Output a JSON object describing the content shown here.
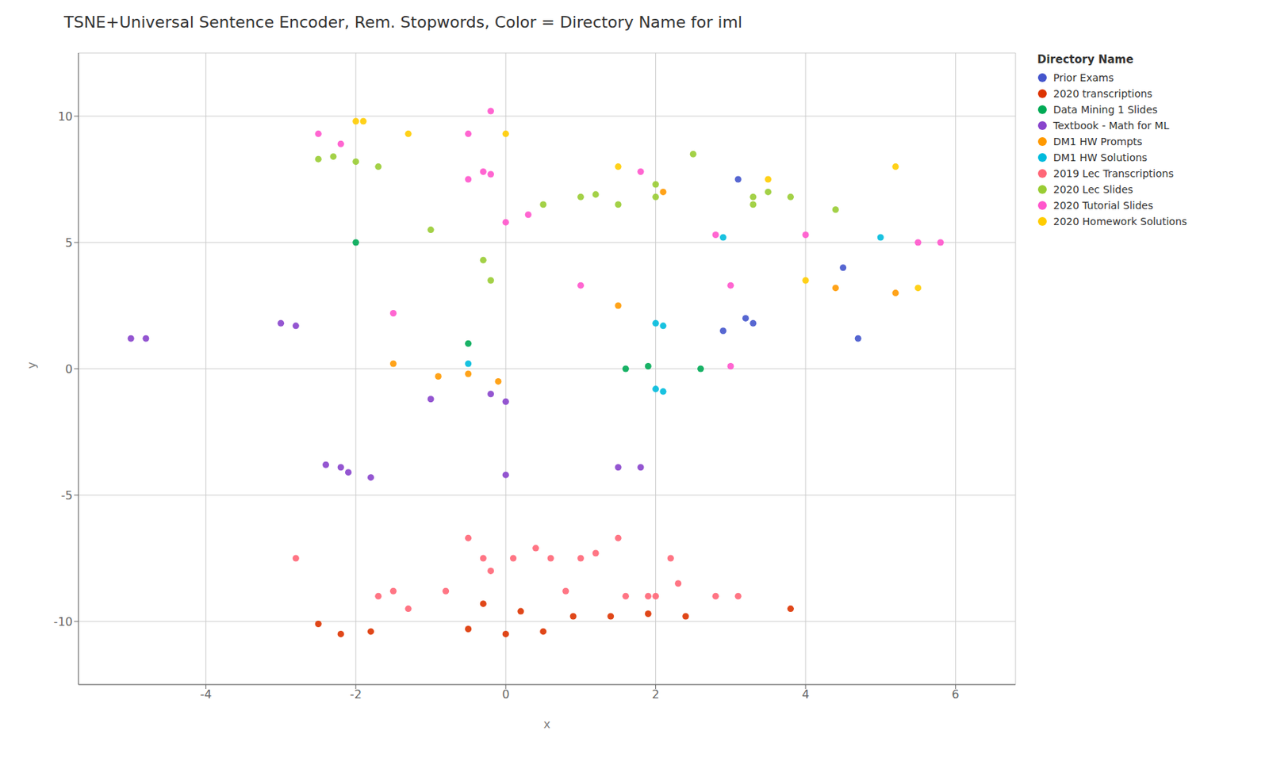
{
  "chart_data": {
    "type": "scatter",
    "title": "TSNE+Universal Sentence Encoder, Rem. Stopwords, Color = Directory Name for iml",
    "xlabel": "x",
    "ylabel": "y",
    "legend_title": "Directory Name",
    "legend": "right",
    "grid": true,
    "xlim": [
      -5.7,
      6.8
    ],
    "ylim": [
      -12.5,
      12.5
    ],
    "xticks": [
      -4,
      -2,
      0,
      2,
      4,
      6
    ],
    "yticks": [
      -10,
      -5,
      0,
      5,
      10
    ],
    "series": [
      {
        "name": "Prior Exams",
        "color": "#4455cc",
        "values": [
          [
            3.1,
            7.5
          ],
          [
            2.9,
            1.5
          ],
          [
            3.2,
            2.0
          ],
          [
            3.3,
            1.8
          ],
          [
            4.5,
            4.0
          ],
          [
            4.7,
            1.2
          ]
        ]
      },
      {
        "name": "2020 transcriptions",
        "color": "#dd3300",
        "values": [
          [
            -2.5,
            -10.1
          ],
          [
            -2.2,
            -10.5
          ],
          [
            -1.8,
            -10.4
          ],
          [
            -0.5,
            -10.3
          ],
          [
            0.0,
            -10.5
          ],
          [
            0.5,
            -10.4
          ],
          [
            0.9,
            -9.8
          ],
          [
            1.4,
            -9.8
          ],
          [
            1.9,
            -9.7
          ],
          [
            2.4,
            -9.8
          ],
          [
            3.8,
            -9.5
          ],
          [
            -0.3,
            -9.3
          ],
          [
            0.2,
            -9.6
          ]
        ]
      },
      {
        "name": "Data Mining 1 Slides",
        "color": "#00aa55",
        "values": [
          [
            -2.0,
            5.0
          ],
          [
            -0.5,
            1.0
          ],
          [
            1.6,
            0.0
          ],
          [
            1.9,
            0.1
          ],
          [
            2.6,
            0.0
          ]
        ]
      },
      {
        "name": "Textbook - Math for ML",
        "color": "#8844cc",
        "values": [
          [
            -5.0,
            1.2
          ],
          [
            -4.8,
            1.2
          ],
          [
            -3.0,
            1.8
          ],
          [
            -2.8,
            1.7
          ],
          [
            -2.4,
            -3.8
          ],
          [
            -2.2,
            -3.9
          ],
          [
            -2.1,
            -4.1
          ],
          [
            -1.8,
            -4.3
          ],
          [
            0.0,
            -4.2
          ],
          [
            -0.2,
            -1.0
          ],
          [
            -1.0,
            -1.2
          ],
          [
            0.0,
            -1.3
          ],
          [
            1.5,
            -3.9
          ],
          [
            1.8,
            -3.9
          ]
        ]
      },
      {
        "name": "DM1 HW Prompts",
        "color": "#ff9900",
        "values": [
          [
            -0.9,
            -0.3
          ],
          [
            -0.5,
            -0.2
          ],
          [
            1.5,
            2.5
          ],
          [
            4.4,
            3.2
          ],
          [
            2.1,
            7.0
          ],
          [
            -1.5,
            0.2
          ],
          [
            -0.1,
            -0.5
          ],
          [
            5.2,
            3.0
          ]
        ]
      },
      {
        "name": "DM1 HW Solutions",
        "color": "#00bbdd",
        "values": [
          [
            -0.5,
            0.2
          ],
          [
            2.0,
            1.8
          ],
          [
            2.1,
            1.7
          ],
          [
            2.0,
            -0.8
          ],
          [
            2.1,
            -0.9
          ],
          [
            2.9,
            5.2
          ],
          [
            5.0,
            5.2
          ]
        ]
      },
      {
        "name": "2019 Lec Transcriptions",
        "color": "#ff6677",
        "values": [
          [
            -2.8,
            -7.5
          ],
          [
            -1.7,
            -9.0
          ],
          [
            -1.5,
            -8.8
          ],
          [
            -1.3,
            -9.5
          ],
          [
            -0.8,
            -8.8
          ],
          [
            -0.5,
            -6.7
          ],
          [
            -0.3,
            -7.5
          ],
          [
            -0.2,
            -8.0
          ],
          [
            0.1,
            -7.5
          ],
          [
            0.4,
            -7.1
          ],
          [
            0.6,
            -7.5
          ],
          [
            0.8,
            -8.8
          ],
          [
            1.0,
            -7.5
          ],
          [
            1.2,
            -7.3
          ],
          [
            1.5,
            -6.7
          ],
          [
            1.6,
            -9.0
          ],
          [
            1.9,
            -9.0
          ],
          [
            2.0,
            -9.0
          ],
          [
            2.2,
            -7.5
          ],
          [
            2.8,
            -9.0
          ],
          [
            3.1,
            -9.0
          ],
          [
            2.3,
            -8.5
          ]
        ]
      },
      {
        "name": "2020 Lec Slides",
        "color": "#99cc33",
        "values": [
          [
            -2.5,
            8.3
          ],
          [
            -2.3,
            8.4
          ],
          [
            -2.0,
            8.2
          ],
          [
            -1.7,
            8.0
          ],
          [
            -1.0,
            5.5
          ],
          [
            -0.3,
            4.3
          ],
          [
            -0.2,
            3.5
          ],
          [
            0.5,
            6.5
          ],
          [
            1.0,
            6.8
          ],
          [
            1.2,
            6.9
          ],
          [
            1.5,
            6.5
          ],
          [
            2.0,
            6.8
          ],
          [
            2.0,
            7.3
          ],
          [
            2.5,
            8.5
          ],
          [
            3.3,
            6.8
          ],
          [
            3.5,
            7.0
          ],
          [
            3.8,
            6.8
          ],
          [
            3.3,
            6.5
          ],
          [
            4.4,
            6.3
          ]
        ]
      },
      {
        "name": "2020 Tutorial Slides",
        "color": "#ff55cc",
        "values": [
          [
            -2.5,
            9.3
          ],
          [
            -2.2,
            8.9
          ],
          [
            -1.5,
            2.2
          ],
          [
            -0.5,
            7.5
          ],
          [
            -0.3,
            7.8
          ],
          [
            -0.2,
            7.7
          ],
          [
            0.3,
            6.1
          ],
          [
            0.0,
            5.8
          ],
          [
            1.8,
            7.8
          ],
          [
            2.8,
            5.3
          ],
          [
            4.0,
            5.3
          ],
          [
            5.5,
            5.0
          ],
          [
            5.8,
            5.0
          ],
          [
            -0.2,
            10.2
          ],
          [
            -0.5,
            9.3
          ],
          [
            1.0,
            3.3
          ],
          [
            3.0,
            3.3
          ],
          [
            3.0,
            0.1
          ]
        ]
      },
      {
        "name": "2020 Homework Solutions",
        "color": "#ffcc00",
        "values": [
          [
            -2.0,
            9.8
          ],
          [
            -1.9,
            9.8
          ],
          [
            -1.3,
            9.3
          ],
          [
            0.0,
            9.3
          ],
          [
            1.5,
            8.0
          ],
          [
            3.5,
            7.5
          ],
          [
            4.0,
            3.5
          ],
          [
            5.2,
            8.0
          ],
          [
            5.5,
            3.2
          ]
        ]
      }
    ]
  }
}
